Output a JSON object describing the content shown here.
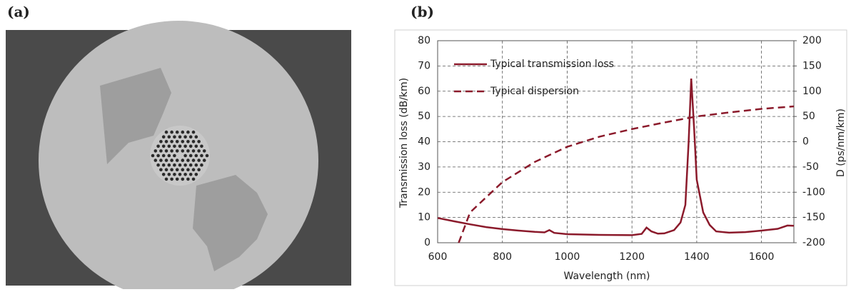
{
  "panel_labels": [
    "(a)",
    "(b)"
  ],
  "chart_data": {
    "type": "line",
    "xlabel": "Wavelength (nm)",
    "ylabel": "Transmission loss (dB/km)",
    "y2label": "D (ps/nm/km)",
    "xlim": [
      600,
      1700
    ],
    "xticks": [
      600,
      800,
      1000,
      1200,
      1400,
      1600
    ],
    "ylim": [
      0,
      80
    ],
    "yticks": [
      0,
      10,
      20,
      30,
      40,
      50,
      60,
      70,
      80
    ],
    "y2lim": [
      -200,
      200
    ],
    "y2ticks": [
      -200,
      -150,
      -100,
      -50,
      0,
      50,
      100,
      150,
      200
    ],
    "grid": true,
    "legend": "upper left",
    "series": [
      {
        "name": "Typical transmission loss",
        "color": "#8b1a2b",
        "style": "solid",
        "x": [
          600,
          650,
          700,
          750,
          800,
          850,
          900,
          930,
          945,
          960,
          1000,
          1100,
          1200,
          1230,
          1245,
          1260,
          1280,
          1300,
          1330,
          1350,
          1365,
          1375,
          1383,
          1392,
          1400,
          1420,
          1440,
          1460,
          1500,
          1550,
          1600,
          1650,
          1680,
          1700
        ],
        "values": [
          9.8,
          8.5,
          7.3,
          6.2,
          5.4,
          4.8,
          4.3,
          4.1,
          5.0,
          3.9,
          3.4,
          3.1,
          3.0,
          3.5,
          6.0,
          4.5,
          3.6,
          3.7,
          5,
          8,
          15,
          40,
          65,
          45,
          25,
          12,
          7,
          4.5,
          4.0,
          4.2,
          4.8,
          5.5,
          6.8,
          6.7
        ]
      },
      {
        "name": "Typical dispersion",
        "color": "#8b1a2b",
        "style": "dashed",
        "axis": "y2",
        "x": [
          665,
          700,
          750,
          800,
          900,
          1000,
          1100,
          1200,
          1300,
          1400,
          1500,
          1600,
          1700
        ],
        "values": [
          -200,
          -140,
          -110,
          -80,
          -40,
          -10,
          10,
          25,
          38,
          50,
          58,
          65,
          70
        ]
      }
    ]
  }
}
